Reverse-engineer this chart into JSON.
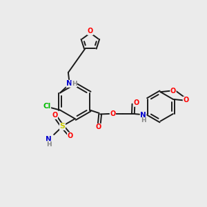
{
  "background_color": "#ebebeb",
  "bond_color": "#1a1a1a",
  "atom_colors": {
    "O": "#ff0000",
    "N": "#0000cc",
    "S": "#cccc00",
    "Cl": "#00bb00",
    "H": "#888888",
    "C": "#1a1a1a"
  },
  "figsize": [
    3.0,
    3.0
  ],
  "dpi": 100,
  "xlim": [
    0,
    10
  ],
  "ylim": [
    0,
    10
  ]
}
